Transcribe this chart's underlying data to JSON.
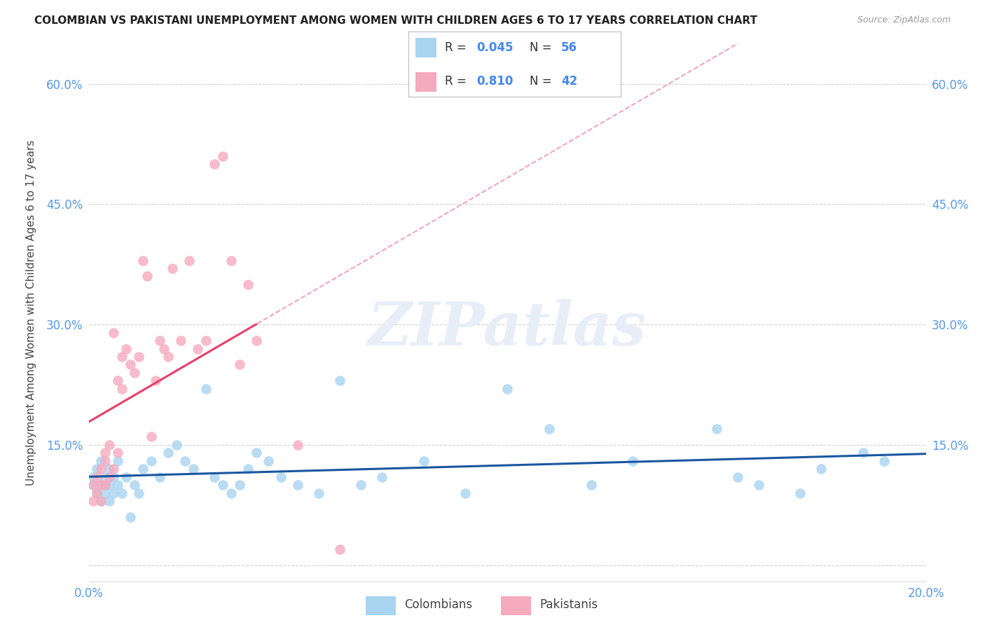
{
  "title": "COLOMBIAN VS PAKISTANI UNEMPLOYMENT AMONG WOMEN WITH CHILDREN AGES 6 TO 17 YEARS CORRELATION CHART",
  "source": "Source: ZipAtlas.com",
  "ylabel": "Unemployment Among Women with Children Ages 6 to 17 years",
  "xlim": [
    0.0,
    0.2
  ],
  "ylim": [
    -0.02,
    0.65
  ],
  "yticks": [
    0.0,
    0.15,
    0.3,
    0.45,
    0.6
  ],
  "ytick_labels": [
    "",
    "15.0%",
    "30.0%",
    "45.0%",
    "60.0%"
  ],
  "xticks": [
    0.0,
    0.04,
    0.08,
    0.12,
    0.16,
    0.2
  ],
  "xtick_labels": [
    "0.0%",
    "",
    "",
    "",
    "",
    "20.0%"
  ],
  "colombian_R": 0.045,
  "colombian_N": 56,
  "pakistani_R": 0.81,
  "pakistani_N": 42,
  "colombian_color": "#A8D4F0",
  "pakistani_color": "#F5AABE",
  "colombian_trend_color": "#1A56A0",
  "pakistani_trend_color": "#E8406A",
  "pakistani_trend_dashed_color": "#F0A0B8",
  "background_color": "#FFFFFF",
  "grid_color": "#CCCCCC",
  "colombians_x": [
    0.001,
    0.001,
    0.002,
    0.002,
    0.003,
    0.003,
    0.003,
    0.004,
    0.004,
    0.004,
    0.005,
    0.005,
    0.005,
    0.006,
    0.006,
    0.007,
    0.007,
    0.008,
    0.009,
    0.01,
    0.011,
    0.012,
    0.013,
    0.015,
    0.017,
    0.019,
    0.021,
    0.023,
    0.025,
    0.028,
    0.03,
    0.032,
    0.034,
    0.036,
    0.038,
    0.04,
    0.043,
    0.046,
    0.05,
    0.055,
    0.06,
    0.065,
    0.07,
    0.08,
    0.09,
    0.1,
    0.11,
    0.12,
    0.13,
    0.15,
    0.155,
    0.16,
    0.17,
    0.175,
    0.185,
    0.19
  ],
  "colombians_y": [
    0.1,
    0.11,
    0.09,
    0.12,
    0.08,
    0.1,
    0.13,
    0.09,
    0.11,
    0.1,
    0.08,
    0.1,
    0.12,
    0.09,
    0.11,
    0.1,
    0.13,
    0.09,
    0.11,
    0.06,
    0.1,
    0.09,
    0.12,
    0.13,
    0.11,
    0.14,
    0.15,
    0.13,
    0.12,
    0.22,
    0.11,
    0.1,
    0.09,
    0.1,
    0.12,
    0.14,
    0.13,
    0.11,
    0.1,
    0.09,
    0.23,
    0.1,
    0.11,
    0.13,
    0.09,
    0.22,
    0.17,
    0.1,
    0.13,
    0.17,
    0.11,
    0.1,
    0.09,
    0.12,
    0.14,
    0.13
  ],
  "pakistanis_x": [
    0.001,
    0.001,
    0.002,
    0.002,
    0.003,
    0.003,
    0.003,
    0.004,
    0.004,
    0.004,
    0.005,
    0.005,
    0.006,
    0.006,
    0.007,
    0.007,
    0.008,
    0.008,
    0.009,
    0.01,
    0.011,
    0.012,
    0.013,
    0.014,
    0.015,
    0.016,
    0.017,
    0.018,
    0.019,
    0.02,
    0.022,
    0.024,
    0.026,
    0.028,
    0.03,
    0.032,
    0.034,
    0.036,
    0.038,
    0.04,
    0.05,
    0.06
  ],
  "pakistanis_y": [
    0.08,
    0.1,
    0.09,
    0.11,
    0.1,
    0.12,
    0.08,
    0.1,
    0.13,
    0.14,
    0.11,
    0.15,
    0.12,
    0.29,
    0.14,
    0.23,
    0.22,
    0.26,
    0.27,
    0.25,
    0.24,
    0.26,
    0.38,
    0.36,
    0.16,
    0.23,
    0.28,
    0.27,
    0.26,
    0.37,
    0.28,
    0.38,
    0.27,
    0.28,
    0.5,
    0.51,
    0.38,
    0.25,
    0.35,
    0.28,
    0.15,
    0.02
  ],
  "watermark_text": "ZIPatlas",
  "watermark_color": "#E8EEF8"
}
